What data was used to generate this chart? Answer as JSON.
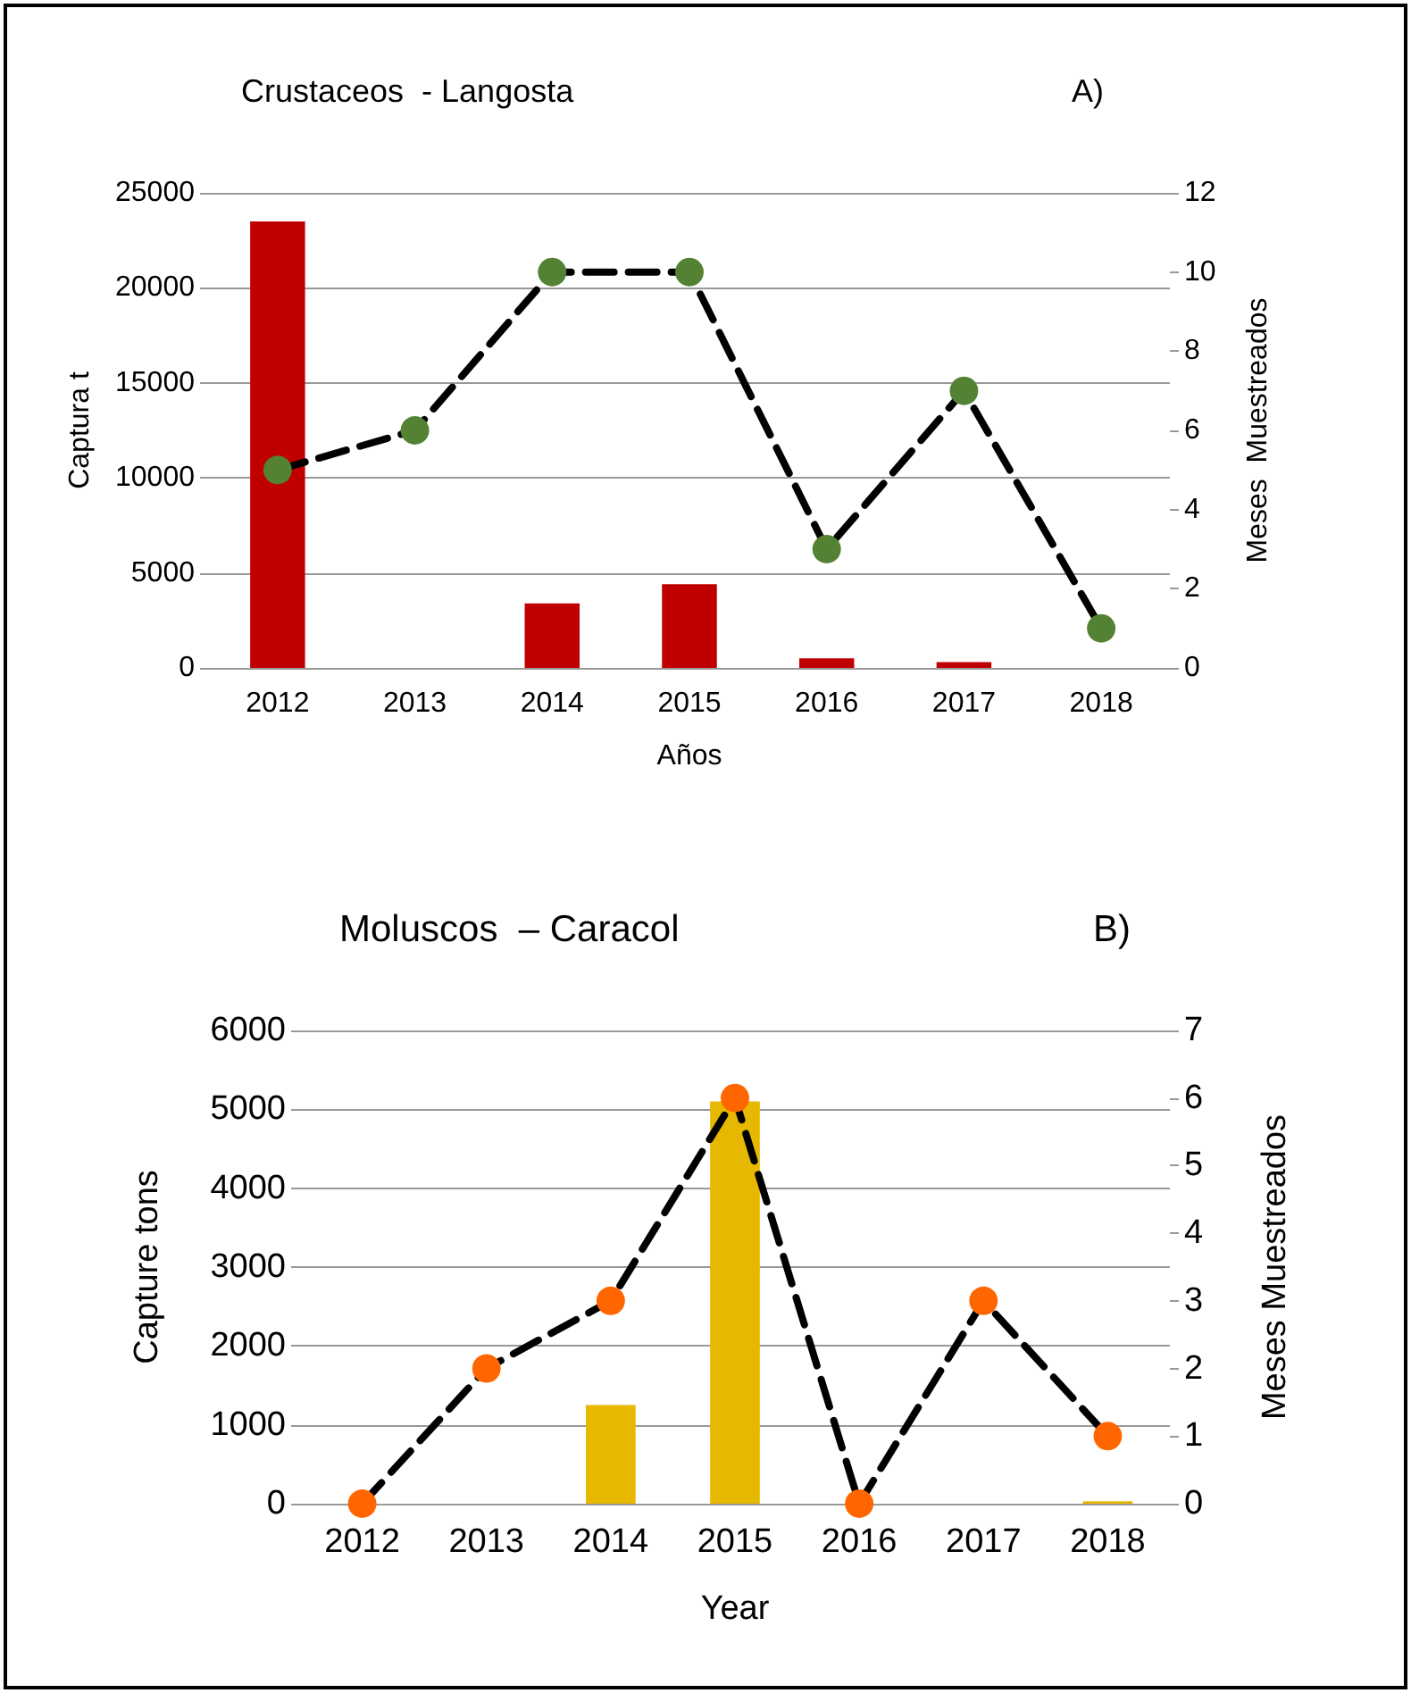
{
  "chart_data": [
    {
      "type": "bar",
      "title": "Crustaceos  - Langosta",
      "annotations": [
        "A)"
      ],
      "xlabel": "Años",
      "ylabel": "Captura t",
      "y2label": "Meses  Muestreados",
      "categories": [
        "2012",
        "2013",
        "2014",
        "2015",
        "2016",
        "2017",
        "2018"
      ],
      "series": [
        {
          "color": "#c00000",
          "values": [
            23500,
            0,
            3400,
            4400,
            500,
            300,
            0
          ]
        },
        {
          "type": "line",
          "axis": "y2",
          "color": "#548235",
          "marker": "circle",
          "line_style": "dashed",
          "values": [
            5,
            6,
            10,
            10,
            3,
            7,
            1
          ]
        }
      ],
      "ylim": [
        0,
        25000
      ],
      "yticks": [
        0,
        5000,
        10000,
        15000,
        20000,
        25000
      ],
      "y2lim": [
        0,
        12
      ],
      "y2ticks": [
        0,
        2,
        4,
        6,
        8,
        10,
        12
      ],
      "grid": "y"
    },
    {
      "type": "bar",
      "title": "Moluscos  – Caracol",
      "annotations": [
        "B)"
      ],
      "xlabel": "Year",
      "ylabel": "Capture tons",
      "y2label": "Meses Muestreados",
      "categories": [
        "2012",
        "2013",
        "2014",
        "2015",
        "2016",
        "2017",
        "2018"
      ],
      "series": [
        {
          "color": "#e6b800",
          "values": [
            0,
            0,
            1250,
            5100,
            0,
            0,
            30
          ]
        },
        {
          "type": "line",
          "axis": "y2",
          "color": "#ff6600",
          "marker": "circle",
          "line_style": "dashed",
          "values": [
            0,
            2,
            3,
            6,
            0,
            3,
            1
          ]
        }
      ],
      "ylim": [
        0,
        6000
      ],
      "yticks": [
        0,
        1000,
        2000,
        3000,
        4000,
        5000,
        6000
      ],
      "y2lim": [
        0,
        7
      ],
      "y2ticks": [
        0,
        1,
        2,
        3,
        4,
        5,
        6,
        7
      ],
      "grid": "y"
    }
  ]
}
